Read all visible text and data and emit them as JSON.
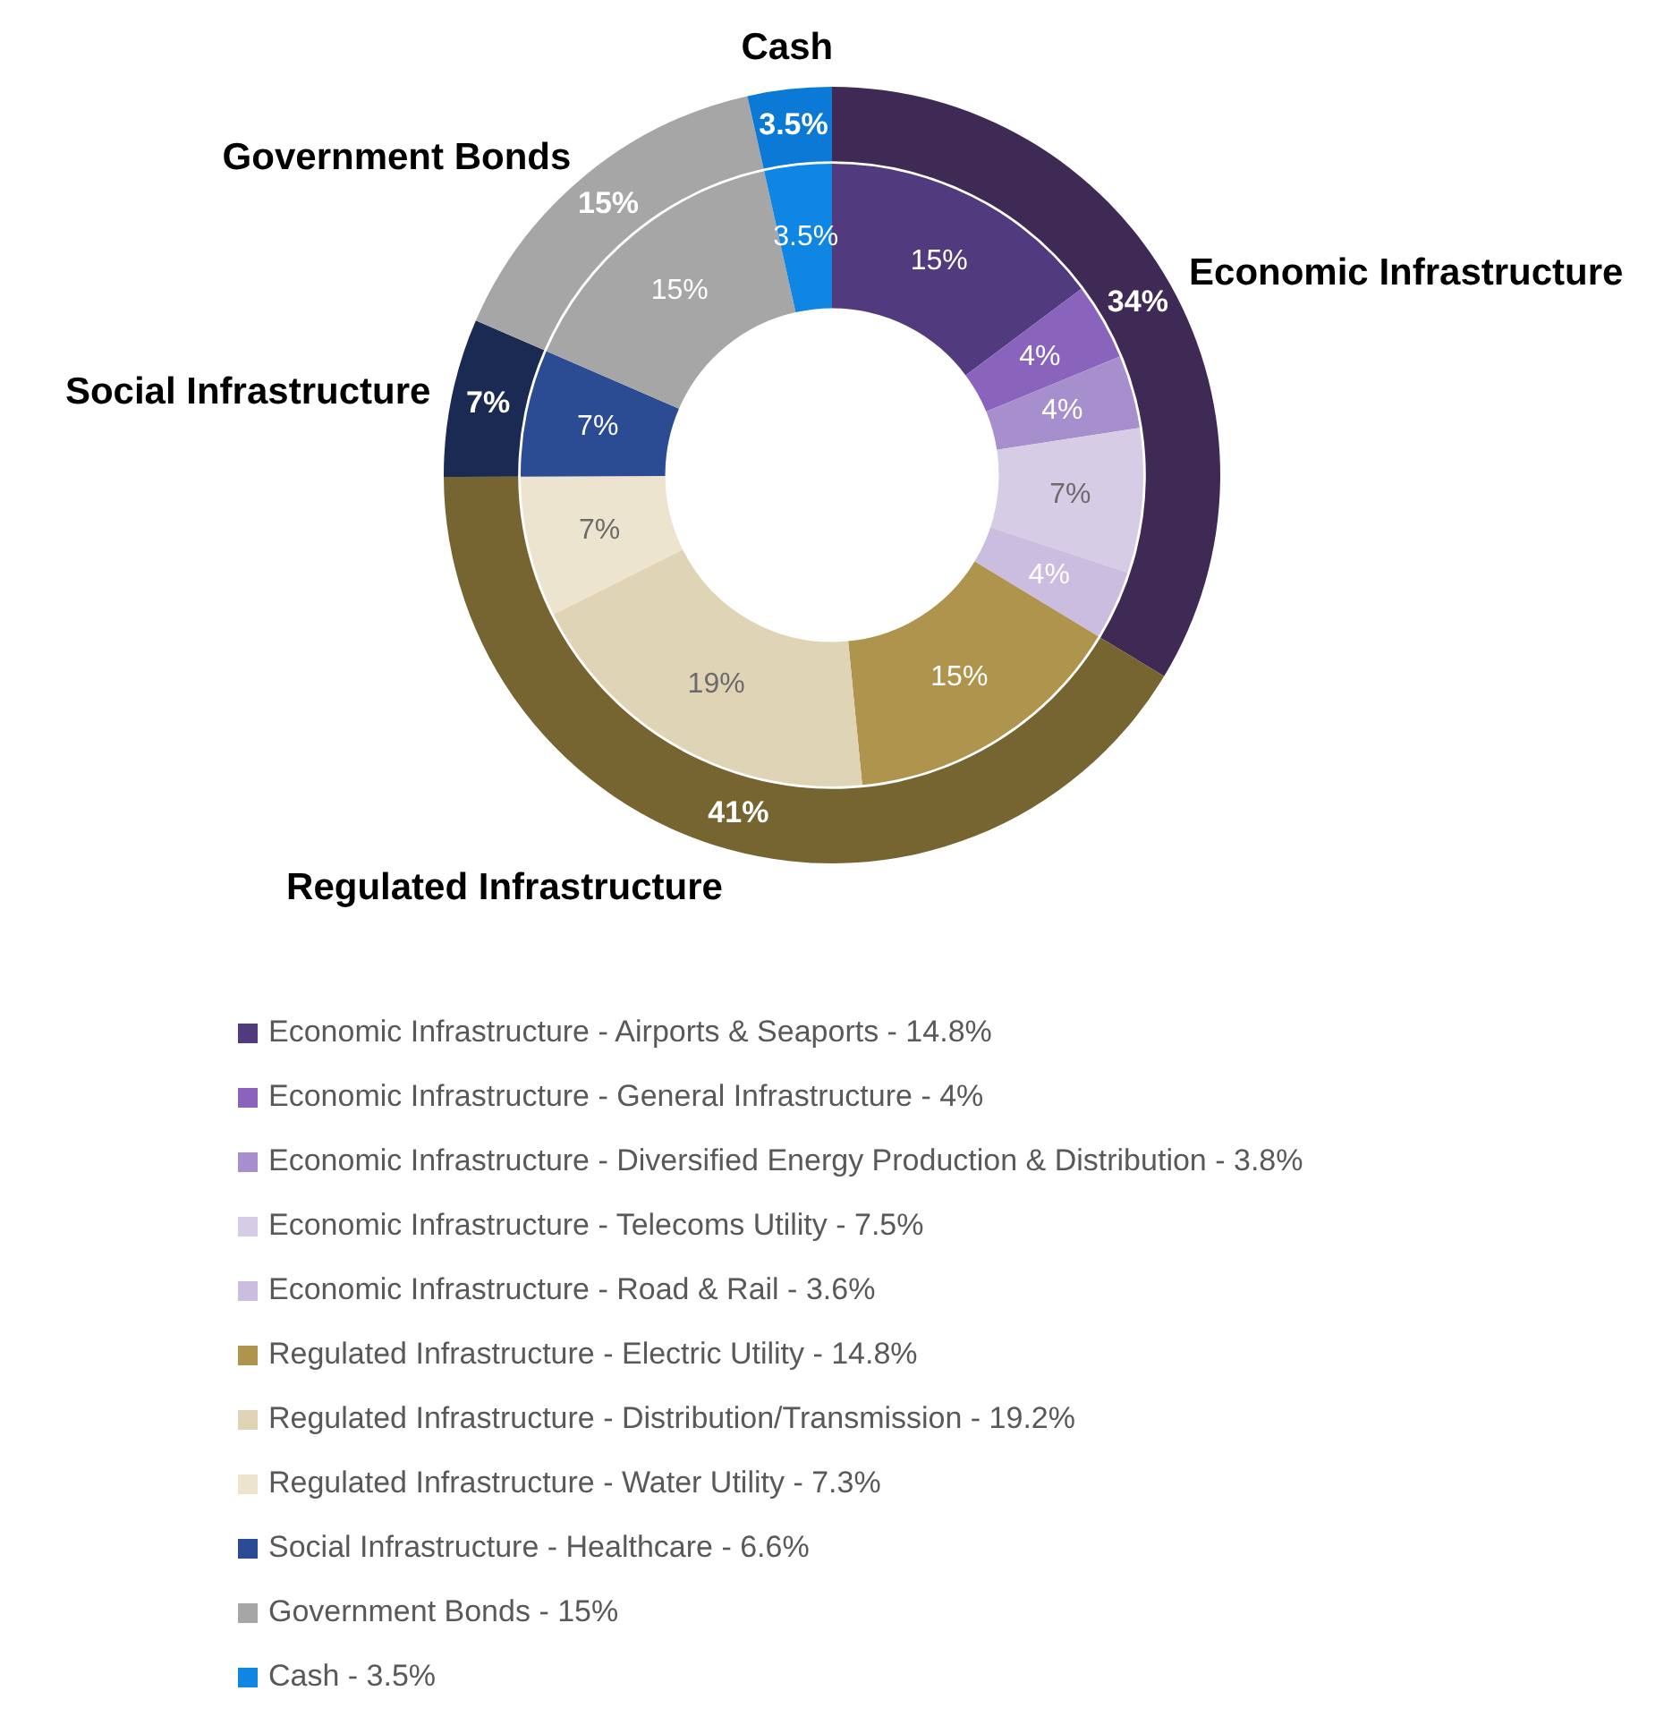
{
  "chart_data": [
    {
      "type": "donut",
      "categories": [
        "Economic Infrastructure",
        "Regulated Infrastructure",
        "Social Infrastructure",
        "Government Bonds",
        "Cash"
      ],
      "values": [
        33.7,
        41.3,
        6.6,
        15,
        3.5
      ],
      "colors": [
        "#3f2a56",
        "#766431",
        "#1b2a52",
        "#a6a6a6",
        "#0a7ad6"
      ],
      "value_labels": [
        "34%",
        "41%",
        "7%",
        "15%",
        "3.5%"
      ]
    },
    {
      "type": "donut",
      "legend": "bottom",
      "categories": [
        "Economic Infrastructure - Airports & Seaports - 14.8%",
        "Economic Infrastructure - General Infrastructure - 4%",
        "Economic Infrastructure - Diversified Energy Production & Distribution - 3.8%",
        "Economic Infrastructure - Telecoms Utility - 7.5%",
        "Economic Infrastructure - Road & Rail - 3.6%",
        "Regulated Infrastructure - Electric Utility - 14.8%",
        "Regulated Infrastructure - Distribution/Transmission - 19.2%",
        "Regulated Infrastructure - Water Utility - 7.3%",
        "Social Infrastructure - Healthcare - 6.6%",
        "Government Bonds - 15%",
        "Cash - 3.5%"
      ],
      "values": [
        14.8,
        4,
        3.8,
        7.5,
        3.6,
        14.8,
        19.2,
        7.3,
        6.6,
        15,
        3.5
      ],
      "colors": [
        "#523a7e",
        "#8a63bd",
        "#a68fcc",
        "#d7cce6",
        "#cbbde0",
        "#ae944c",
        "#e0d4b6",
        "#ece4cf",
        "#2b4b93",
        "#a6a6a6",
        "#0f86e3"
      ],
      "value_labels": [
        "15%",
        "4%",
        "4%",
        "7%",
        "4%",
        "15%",
        "19%",
        "7%",
        "7%",
        "15%",
        "3.5%"
      ]
    }
  ]
}
